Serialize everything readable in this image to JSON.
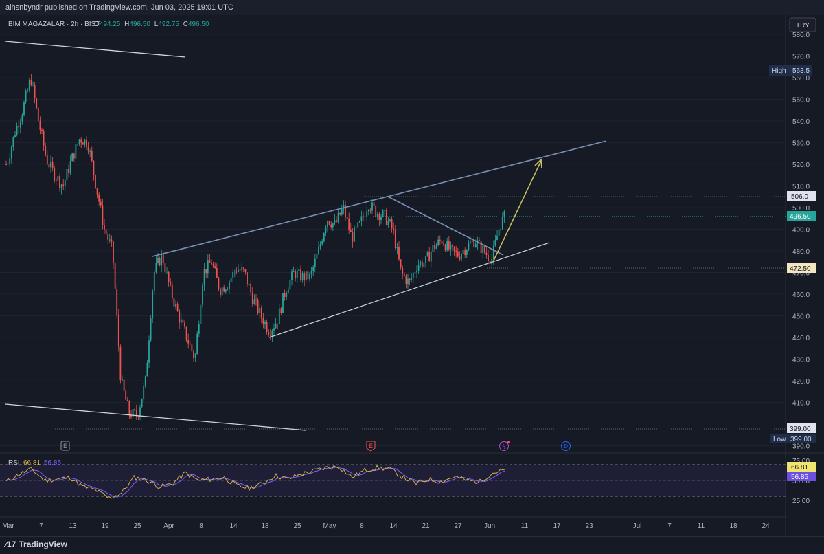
{
  "header": {
    "published": "alhsnbyndr published on TradingView.com, Jun 03, 2025 19:01 UTC"
  },
  "legend": {
    "symbol": "BIM MAGAZALAR · 2h · BIST",
    "o_label": "O",
    "o": "494.25",
    "h_label": "H",
    "h": "496.50",
    "l_label": "L",
    "l": "492.75",
    "c_label": "C",
    "c": "496.50"
  },
  "currency_button": "TRY",
  "price_axis": {
    "ticks": [
      580,
      570,
      560,
      550,
      540,
      530,
      520,
      510,
      500,
      490,
      480,
      470,
      460,
      450,
      440,
      430,
      420,
      410,
      390
    ],
    "labels": [
      "580.0",
      "570.0",
      "560.0",
      "550.0",
      "540.0",
      "530.0",
      "520.0",
      "510.0",
      "500.0",
      "490.0",
      "480.0",
      "470.0",
      "460.0",
      "450.0",
      "440.0",
      "430.0",
      "420.0",
      "410.0",
      "390.0"
    ]
  },
  "price_tags": {
    "high_label": "High",
    "high_value": "563.5",
    "low_label": "Low",
    "low_value": "399.00",
    "level_506": "506.0",
    "current": "496.50",
    "level_472": "472.50",
    "level_399": "399.00"
  },
  "time_axis": [
    "Mar",
    "7",
    "13",
    "19",
    "25",
    "Apr",
    "8",
    "14",
    "18",
    "25",
    "May",
    "8",
    "14",
    "21",
    "27",
    "Jun",
    "11",
    "17",
    "23",
    "Jul",
    "7",
    "11",
    "18",
    "24"
  ],
  "rsi": {
    "label": "RSI",
    "value": "66.81",
    "ma_value": "56.85",
    "ticks": [
      "75.00",
      "50.00",
      "25.00"
    ],
    "tag_value": "66.81",
    "tag_ma": "56.85"
  },
  "event_markers": [
    "E",
    "E",
    "D"
  ],
  "footer": {
    "brand": "TradingView"
  },
  "colors": {
    "up": "#26a69a",
    "down": "#ef5350",
    "background": "#161a25",
    "rsi": "#d4b24c",
    "rsi_ma": "#7b61ff",
    "channel": "#7a8fb5",
    "arrow": "#c9c060"
  },
  "chart_data": {
    "type": "candlestick",
    "interval": "2h",
    "ylim": [
      385,
      585
    ],
    "x": [
      "Mar 3",
      "Mar 5",
      "Mar 7",
      "Mar 10",
      "Mar 12",
      "Mar 14",
      "Mar 17",
      "Mar 19",
      "Mar 21",
      "Mar 24",
      "Mar 26",
      "Mar 28",
      "Apr 1",
      "Apr 3",
      "Apr 5",
      "Apr 8",
      "Apr 10",
      "Apr 12",
      "Apr 15",
      "Apr 17",
      "Apr 19",
      "Apr 22",
      "Apr 24",
      "Apr 26",
      "Apr 29",
      "May 1",
      "May 3",
      "May 6",
      "May 8",
      "May 10",
      "May 13",
      "May 15",
      "May 17",
      "May 20",
      "May 22",
      "May 24",
      "May 27",
      "May 29",
      "May 31",
      "Jun 3"
    ],
    "close": [
      525,
      555,
      560,
      520,
      515,
      530,
      505,
      475,
      410,
      420,
      470,
      460,
      440,
      450,
      480,
      462,
      466,
      470,
      455,
      445,
      452,
      465,
      458,
      470,
      480,
      490,
      498,
      470,
      492,
      500,
      503,
      485,
      470,
      480,
      475,
      484,
      480,
      478,
      492,
      496.5
    ],
    "rsi": [
      48,
      60,
      68,
      50,
      52,
      55,
      40,
      35,
      22,
      30,
      55,
      50,
      40,
      45,
      62,
      50,
      52,
      55,
      42,
      38,
      45,
      58,
      52,
      60,
      65,
      70,
      72,
      55,
      66,
      70,
      68,
      55,
      45,
      52,
      48,
      56,
      50,
      48,
      62,
      66.81
    ],
    "channel_lines": [
      {
        "name": "upper channel",
        "from": [
          "Mar 27",
          478
        ],
        "to": [
          "Jun 23",
          530.5
        ]
      },
      {
        "name": "lower channel",
        "from": [
          "Apr 18",
          441
        ],
        "to": [
          "Jun 17",
          484
        ]
      },
      {
        "name": "descending line",
        "from": [
          "May 12",
          506
        ],
        "to": [
          "Jun 3",
          478
        ]
      },
      {
        "name": "top-left line",
        "from": [
          "Feb 28",
          574
        ],
        "to": [
          "Apr 1",
          569
        ]
      },
      {
        "name": "bottom-left line",
        "from": [
          "Feb 28",
          411
        ],
        "to": [
          "Apr 25",
          398.5
        ]
      }
    ],
    "projection_arrow": {
      "from": [
        "Jun 3",
        476
      ],
      "to": [
        "Jun 13",
        522
      ]
    },
    "horizontal_levels": [
      506.0,
      472.5,
      399.0
    ],
    "high": 563.5,
    "low": 399.0
  }
}
